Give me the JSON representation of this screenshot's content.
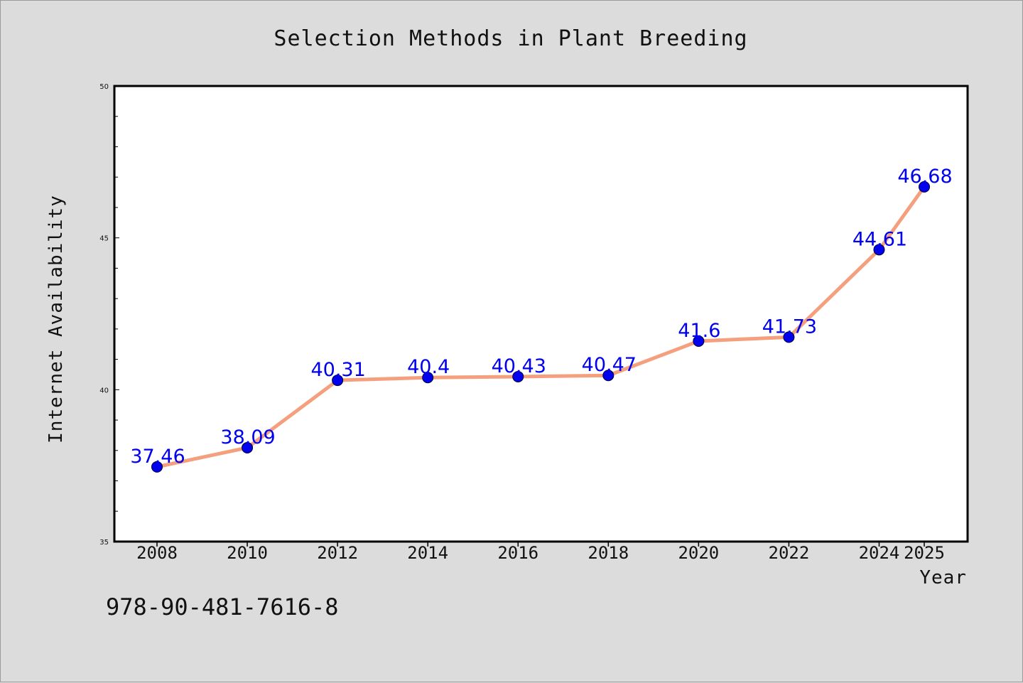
{
  "chart_data": {
    "type": "line",
    "title": "Selection Methods in Plant Breeding",
    "xlabel": "Year",
    "ylabel": "Internet Availability",
    "categories": [
      "2008",
      "2010",
      "2012",
      "2014",
      "2016",
      "2018",
      "2020",
      "2022",
      "2024",
      "2025"
    ],
    "series": [
      {
        "values": [
          37.46,
          38.09,
          40.31,
          40.4,
          40.43,
          40.47,
          41.6,
          41.73,
          44.61,
          46.68
        ],
        "labels": [
          "37.46",
          "38.09",
          "40.31",
          "40.4",
          "40.43",
          "40.47",
          "41.6",
          "41.73",
          "44.61",
          "46.68"
        ],
        "line_color": "#f4a07e",
        "marker_color": "#0000ee"
      }
    ],
    "ylim": [
      35,
      50
    ],
    "yticks": [
      "35",
      "40",
      "45",
      "50"
    ],
    "grid": false,
    "legend": "none"
  },
  "footnote": "978-90-481-7616-8",
  "colors": {
    "background": "#dcdcdc",
    "plot_area": "#ffffff",
    "line": "#f4a07e",
    "marker": "#0000ee",
    "data_label": "#0000ee"
  }
}
